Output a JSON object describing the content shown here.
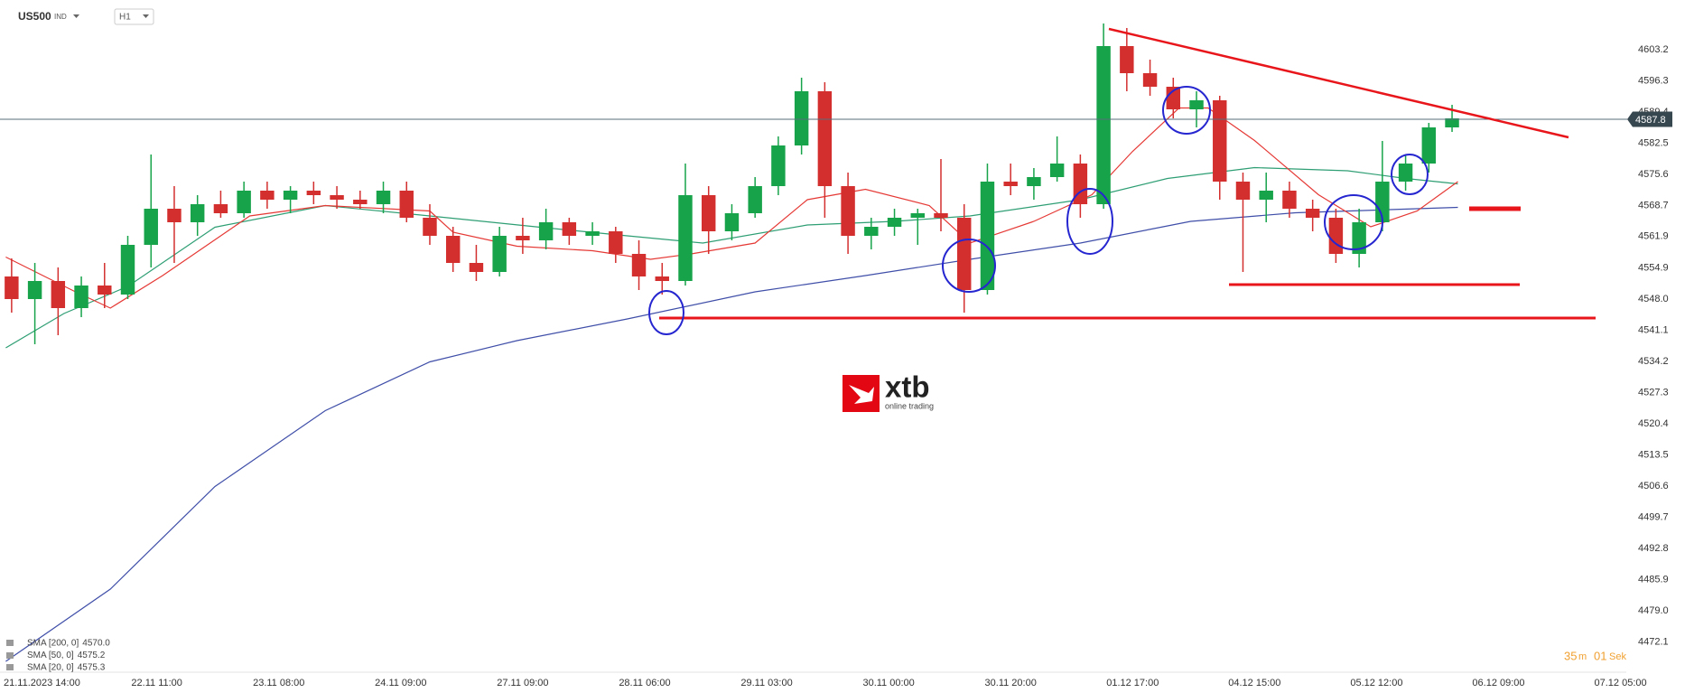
{
  "toolbar": {
    "symbol": "US500",
    "market": "IND",
    "interval": "H1"
  },
  "logo": {
    "brand": "xtb",
    "tagline": "online trading"
  },
  "timer": {
    "minutes": "35",
    "minutes_unit": "m",
    "seconds": "01",
    "seconds_unit": "Sek"
  },
  "chart_data": {
    "type": "candlestick",
    "up_color": "#16a34a",
    "down_color": "#d32f2f",
    "xlim": [
      -6,
      274
    ],
    "ylim": [
      4465.4,
      4614.2
    ],
    "grid": false,
    "xticks": [
      {
        "value": 0,
        "label": "21.11.2023 14:00"
      },
      {
        "value": 21,
        "label": "22.11 11:00"
      },
      {
        "value": 42,
        "label": "23.11 08:00"
      },
      {
        "value": 63,
        "label": "24.11 09:00"
      },
      {
        "value": 84,
        "label": "27.11 09:00"
      },
      {
        "value": 105,
        "label": "28.11 06:00"
      },
      {
        "value": 126,
        "label": "29.11 03:00"
      },
      {
        "value": 147,
        "label": "30.11 00:00"
      },
      {
        "value": 168,
        "label": "30.11 20:00"
      },
      {
        "value": 189,
        "label": "01.12 17:00"
      },
      {
        "value": 210,
        "label": "04.12 15:00"
      },
      {
        "value": 231,
        "label": "05.12 12:00"
      },
      {
        "value": 252,
        "label": "06.12 09:00"
      },
      {
        "value": 273,
        "label": "07.12 05:00"
      }
    ],
    "yticks": [
      4603.2,
      4596.3,
      4589.4,
      4582.5,
      4575.6,
      4568.7,
      4561.9,
      4554.9,
      {
        "value": 4548.0,
        "label": "4548.0"
      },
      4541.1,
      4534.2,
      4527.3,
      4520.4,
      4513.5,
      4506.6,
      4499.7,
      4492.8,
      4485.9,
      {
        "value": 4479.0,
        "label": "4479.0"
      },
      4472.1
    ],
    "last_price": 4587.8,
    "candles": {
      "x": [
        -4,
        0,
        4,
        8,
        12,
        16,
        20,
        24,
        28,
        32,
        36,
        40,
        44,
        48,
        52,
        56,
        60,
        64,
        68,
        72,
        76,
        80,
        84,
        88,
        92,
        96,
        100,
        104,
        108,
        112,
        116,
        120,
        124,
        128,
        132,
        136,
        140,
        144,
        148,
        152,
        156,
        160,
        164,
        168,
        172,
        176,
        180,
        184,
        188,
        192,
        196,
        200,
        204,
        208,
        212,
        216,
        220,
        224,
        228,
        232,
        236,
        240,
        244
      ],
      "open": [
        4553,
        4548,
        4552,
        4546,
        4551,
        4549,
        4560,
        4568,
        4565,
        4569,
        4567,
        4572,
        4570,
        4572,
        4571,
        4570,
        4569,
        4572,
        4566,
        4562,
        4556,
        4554,
        4562,
        4561,
        4565,
        4562,
        4563,
        4558,
        4553,
        4552,
        4571,
        4563,
        4567,
        4573,
        4582,
        4594,
        4573,
        4562,
        4564,
        4566,
        4567,
        4566,
        4550,
        4574,
        4573,
        4575,
        4578,
        4569,
        4604,
        4598,
        4595,
        4590,
        4592,
        4574,
        4570,
        4572,
        4568,
        4566,
        4558,
        4565,
        4574,
        4578,
        4586
      ],
      "high": [
        4557,
        4556,
        4555,
        4553,
        4556,
        4562,
        4580,
        4573,
        4571,
        4572,
        4574,
        4574,
        4573,
        4574,
        4573,
        4572,
        4574,
        4574,
        4569,
        4564,
        4560,
        4564,
        4566,
        4568,
        4566,
        4565,
        4564,
        4561,
        4556,
        4578,
        4573,
        4569,
        4575,
        4584,
        4597,
        4596,
        4576,
        4566,
        4568,
        4568,
        4579,
        4569,
        4578,
        4578,
        4577,
        4584,
        4580,
        4609,
        4608,
        4601,
        4597,
        4594,
        4593,
        4576,
        4576,
        4574,
        4570,
        4568,
        4568,
        4583,
        4580,
        4587,
        4591
      ],
      "low": [
        4545,
        4538,
        4540,
        4544,
        4546,
        4548,
        4555,
        4556,
        4562,
        4566,
        4566,
        4568,
        4567,
        4569,
        4568,
        4568,
        4567,
        4565,
        4560,
        4554,
        4552,
        4553,
        4558,
        4559,
        4560,
        4560,
        4556,
        4550,
        4549,
        4551,
        4558,
        4561,
        4566,
        4571,
        4580,
        4566,
        4558,
        4559,
        4562,
        4560,
        4563,
        4545,
        4549,
        4571,
        4570,
        4574,
        4566,
        4568,
        4594,
        4593,
        4588,
        4586,
        4570,
        4554,
        4565,
        4566,
        4563,
        4556,
        4555,
        4563,
        4572,
        4576,
        4585
      ],
      "close": [
        4548,
        4552,
        4546,
        4551,
        4549,
        4560,
        4568,
        4565,
        4569,
        4567,
        4572,
        4570,
        4572,
        4571,
        4570,
        4569,
        4572,
        4566,
        4562,
        4556,
        4554,
        4562,
        4561,
        4565,
        4562,
        4563,
        4558,
        4553,
        4552,
        4571,
        4563,
        4567,
        4573,
        4582,
        4594,
        4573,
        4562,
        4564,
        4566,
        4567,
        4566,
        4550,
        4574,
        4573,
        4575,
        4578,
        4569,
        4604,
        4598,
        4595,
        4590,
        4592,
        4574,
        4570,
        4572,
        4568,
        4566,
        4558,
        4565,
        4574,
        4578,
        4586,
        4588
      ]
    },
    "series": [
      {
        "name": "SMA [200, 0]",
        "color": "#3f4ea8",
        "last": {
          "value": 4570.0,
          "label": "4570.0"
        },
        "x": [
          -5,
          13,
          31,
          50,
          68,
          83,
          102,
          124,
          143,
          161,
          180,
          199,
          217,
          245
        ],
        "values": [
          4467.8,
          4483.8,
          4506.5,
          4523.3,
          4534.1,
          4538.8,
          4543.6,
          4549.6,
          4553.2,
          4556.8,
          4560.4,
          4565.2,
          4567.1,
          4568.3
        ]
      },
      {
        "name": "SMA [50, 0]",
        "color": "#2e9e74",
        "last": {
          "value": 4575.2,
          "label": "4575.2"
        },
        "x": [
          -5,
          5,
          16,
          31,
          50,
          68,
          87,
          102,
          115,
          133,
          148,
          161,
          180,
          195,
          210,
          226,
          236,
          245
        ],
        "values": [
          4537.2,
          4544.8,
          4550.8,
          4563.9,
          4568.7,
          4566.4,
          4563.9,
          4562.0,
          4560.4,
          4564.4,
          4565.2,
          4566.4,
          4570.0,
          4574.7,
          4577.1,
          4576.4,
          4574.7,
          4573.5
        ]
      },
      {
        "name": "SMA [20, 0]",
        "color": "#e53935",
        "last": {
          "value": 4575.3,
          "label": "4575.3"
        },
        "x": [
          -5,
          7,
          13,
          22,
          37,
          50,
          68,
          72,
          83,
          96,
          106,
          113,
          124,
          133,
          143,
          154,
          161,
          172,
          182,
          189,
          197,
          202,
          210,
          221,
          230,
          238,
          245
        ],
        "values": [
          4557.3,
          4549.6,
          4546.0,
          4553.2,
          4566.4,
          4568.7,
          4567.5,
          4562.8,
          4559.7,
          4558.7,
          4556.8,
          4558.0,
          4560.4,
          4570.0,
          4572.3,
          4568.7,
          4560.4,
          4565.2,
          4571.1,
          4580.7,
          4590.3,
          4590.3,
          4583.1,
          4571.1,
          4564.0,
          4567.5,
          4574.0
        ]
      }
    ]
  }
}
